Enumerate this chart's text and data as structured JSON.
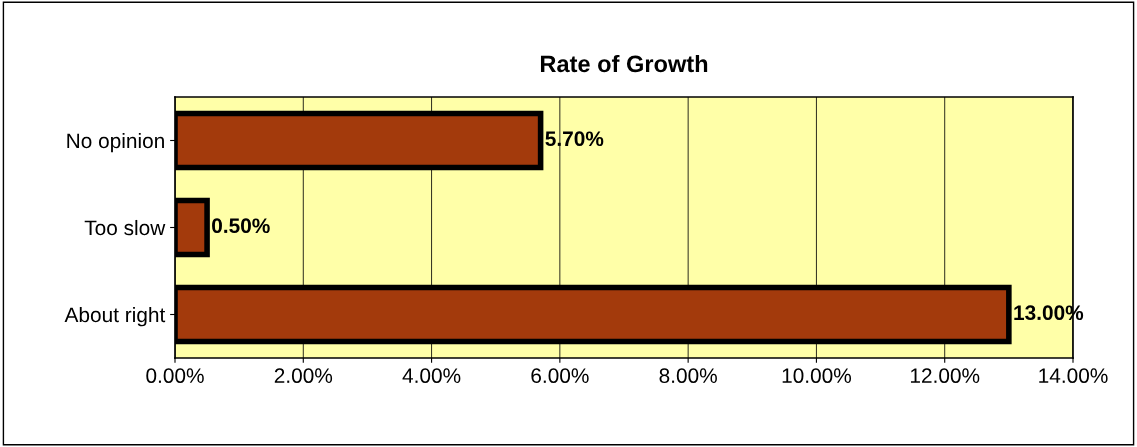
{
  "chart_data": {
    "type": "bar",
    "orientation": "horizontal",
    "title": "Rate of Growth",
    "categories": [
      "No opinion",
      "Too slow",
      "About right"
    ],
    "values": [
      5.7,
      0.5,
      13.0
    ],
    "value_labels": [
      "5.70%",
      "0.50%",
      "13.00%"
    ],
    "color": "#a33a0c",
    "xlim": [
      0,
      14
    ],
    "xticks": [
      {
        "value": 0,
        "label": "0.00%"
      },
      {
        "value": 2,
        "label": "2.00%"
      },
      {
        "value": 4,
        "label": "4.00%"
      },
      {
        "value": 6,
        "label": "6.00%"
      },
      {
        "value": 8,
        "label": "8.00%"
      },
      {
        "value": 10,
        "label": "10.00%"
      },
      {
        "value": 12,
        "label": "12.00%"
      },
      {
        "value": 14,
        "label": "14.00%"
      }
    ],
    "grid": "x",
    "legend": false
  }
}
